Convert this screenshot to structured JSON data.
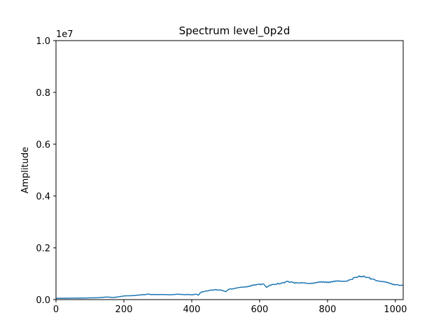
{
  "chart_data": {
    "type": "line",
    "title": "Spectrum level_0p2d",
    "xlabel": "",
    "ylabel": "Amplitude",
    "y_scale_label": "1e7",
    "xlim": [
      0,
      1023
    ],
    "ylim": [
      0,
      10000000
    ],
    "x_ticks": [
      0,
      200,
      400,
      600,
      800,
      1000
    ],
    "x_tick_labels": [
      "0",
      "200",
      "400",
      "600",
      "800",
      "1000"
    ],
    "y_ticks": [
      0,
      2000000,
      4000000,
      6000000,
      8000000,
      10000000
    ],
    "y_tick_labels": [
      "0.0",
      "0.2",
      "0.4",
      "0.6",
      "0.8",
      "1.0"
    ],
    "grid": false,
    "legend": "none",
    "series": [
      {
        "color": "#1f77b4",
        "x": [
          0,
          20,
          40,
          60,
          80,
          100,
          120,
          140,
          150,
          160,
          170,
          180,
          190,
          200,
          220,
          240,
          260,
          270,
          280,
          300,
          320,
          340,
          350,
          360,
          370,
          380,
          390,
          400,
          410,
          420,
          425,
          430,
          440,
          450,
          460,
          470,
          480,
          490,
          500,
          505,
          510,
          520,
          540,
          560,
          580,
          590,
          600,
          610,
          615,
          620,
          625,
          630,
          640,
          650,
          660,
          670,
          680,
          690,
          700,
          710,
          720,
          740,
          760,
          780,
          800,
          820,
          840,
          860,
          870,
          880,
          890,
          900,
          910,
          920,
          930,
          940,
          960,
          980,
          1000,
          1010,
          1023
        ],
        "y": [
          50000,
          52000,
          55000,
          58000,
          60000,
          65000,
          70000,
          90000,
          100000,
          90000,
          80000,
          100000,
          120000,
          140000,
          150000,
          170000,
          190000,
          210000,
          200000,
          190000,
          200000,
          185000,
          200000,
          210000,
          200000,
          190000,
          200000,
          180000,
          210000,
          180000,
          260000,
          300000,
          320000,
          350000,
          370000,
          380000,
          370000,
          360000,
          300000,
          350000,
          400000,
          420000,
          460000,
          500000,
          550000,
          580000,
          590000,
          600000,
          550000,
          480000,
          520000,
          560000,
          580000,
          600000,
          620000,
          650000,
          700000,
          680000,
          660000,
          640000,
          650000,
          620000,
          650000,
          670000,
          680000,
          700000,
          710000,
          730000,
          780000,
          850000,
          880000,
          900000,
          880000,
          850000,
          800000,
          760000,
          700000,
          640000,
          580000,
          560000,
          550000
        ]
      }
    ]
  }
}
